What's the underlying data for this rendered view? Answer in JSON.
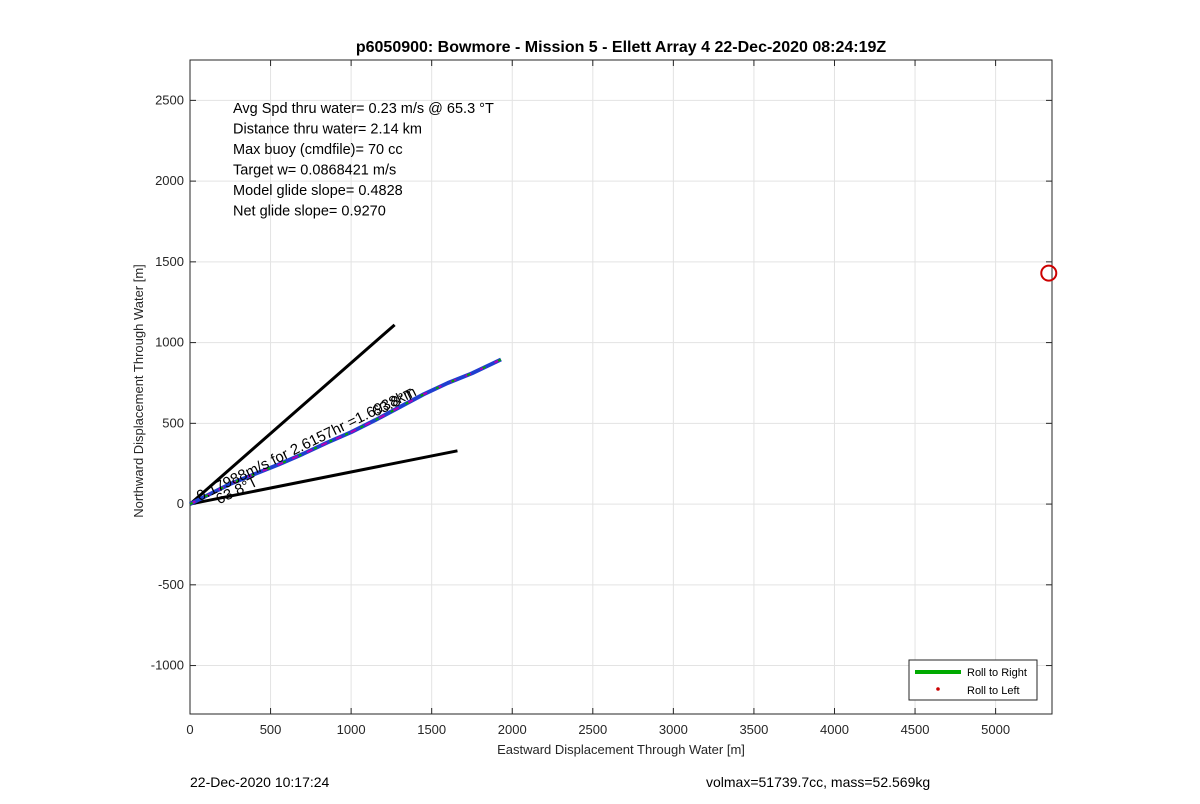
{
  "chart_data": {
    "type": "line",
    "title": "p6050900: Bowmore - Mission 5 - Ellett Array 4 22-Dec-2020 08:24:19Z",
    "xlabel": "Eastward Displacement Through Water [m]",
    "ylabel": "Northward Displacement Through Water [m]",
    "xlim": [
      0,
      5350
    ],
    "ylim": [
      -1300,
      2750
    ],
    "xticks": [
      0,
      500,
      1000,
      1500,
      2000,
      2500,
      3000,
      3500,
      4000,
      4500,
      5000
    ],
    "yticks": [
      -1000,
      -500,
      0,
      500,
      1000,
      1500,
      2000,
      2500
    ],
    "grid": true,
    "info_lines": [
      "Avg Spd thru water=  0.23 m/s @  65.3 °T",
      "Distance thru water=  2.14 km",
      "Max buoy (cmdfile)= 70 cc",
      "Target w= 0.0868421 m/s",
      "Model glide slope= 0.4828",
      "Net glide slope= 0.9270"
    ],
    "series": [
      {
        "name": "Roll to Right",
        "color": "#00aa00",
        "x": [
          0,
          120,
          250,
          400,
          550,
          700,
          850,
          1000,
          1150,
          1300,
          1450,
          1600,
          1750,
          1930
        ],
        "y": [
          0,
          60,
          125,
          185,
          245,
          310,
          380,
          445,
          520,
          600,
          680,
          750,
          810,
          895
        ]
      },
      {
        "name": "Roll to Left",
        "color": "#cc0000",
        "x": [],
        "y": []
      }
    ],
    "envelope_lines": [
      {
        "x": [
          0,
          1270
        ],
        "y": [
          0,
          1110
        ]
      },
      {
        "x": [
          0,
          1660
        ],
        "y": [
          0,
          330
        ]
      }
    ],
    "annotations": [
      {
        "text": "0.17988m/s for 2.6157hr =1.6938km",
        "x": 60,
        "y": 30
      },
      {
        "text": "63.8°T",
        "x": 180,
        "y": 10
      },
      {
        "text": "63.8°T",
        "x": 1150,
        "y": 540
      }
    ],
    "target_marker": {
      "x": 5330,
      "y": 1430,
      "color": "#cc0000"
    },
    "legend_position": "bottom-right"
  },
  "footer": {
    "timestamp": "22-Dec-2020 10:17:24",
    "vol_mass": "volmax=51739.7cc, mass=52.569kg"
  }
}
